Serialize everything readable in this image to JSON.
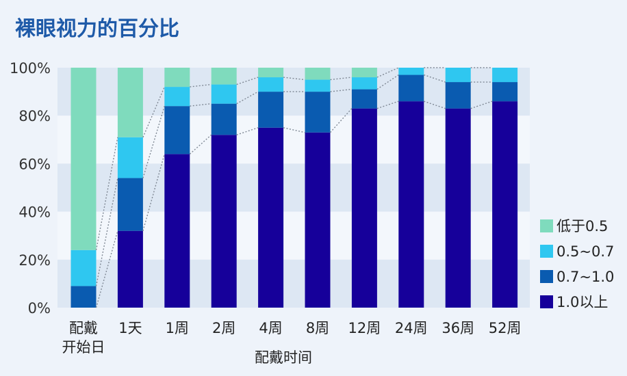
{
  "chart_data": {
    "type": "bar",
    "stacked": true,
    "title": "裸眼视力的百分比",
    "xlabel": "配戴时间",
    "ylabel": "",
    "ylim": [
      0,
      100
    ],
    "yticks": [
      "0%",
      "20%",
      "40%",
      "60%",
      "80%",
      "100%"
    ],
    "categories": [
      [
        "配戴",
        "开始日"
      ],
      [
        "1天"
      ],
      [
        "1周"
      ],
      [
        "2周"
      ],
      [
        "4周"
      ],
      [
        "8周"
      ],
      [
        "12周"
      ],
      [
        "24周"
      ],
      [
        "36周"
      ],
      [
        "52周"
      ]
    ],
    "series": [
      {
        "name": "1.0以上",
        "color": "#16009a",
        "values": [
          0,
          32,
          64,
          72,
          75,
          73,
          83,
          86,
          83,
          86
        ]
      },
      {
        "name": "0.7~1.0",
        "color": "#0a5bb0",
        "values": [
          9,
          22,
          20,
          13,
          15,
          17,
          8,
          11,
          11,
          8
        ]
      },
      {
        "name": "0.5~0.7",
        "color": "#2fc7f0",
        "values": [
          15,
          17,
          8,
          8,
          6,
          5,
          5,
          3,
          6,
          6
        ]
      },
      {
        "name": "低于0.5",
        "color": "#7fdbbd",
        "values": [
          76,
          29,
          8,
          7,
          4,
          5,
          4,
          0,
          0,
          0
        ]
      }
    ],
    "legend_position": "right",
    "legend_order": [
      "低于0.5",
      "0.5~0.7",
      "0.7~1.0",
      "1.0以上"
    ],
    "title_color": "#1e5aa8",
    "band_colors": [
      "#dde7f3",
      "#f3f7fc"
    ],
    "connector_color": "#7f8894"
  }
}
